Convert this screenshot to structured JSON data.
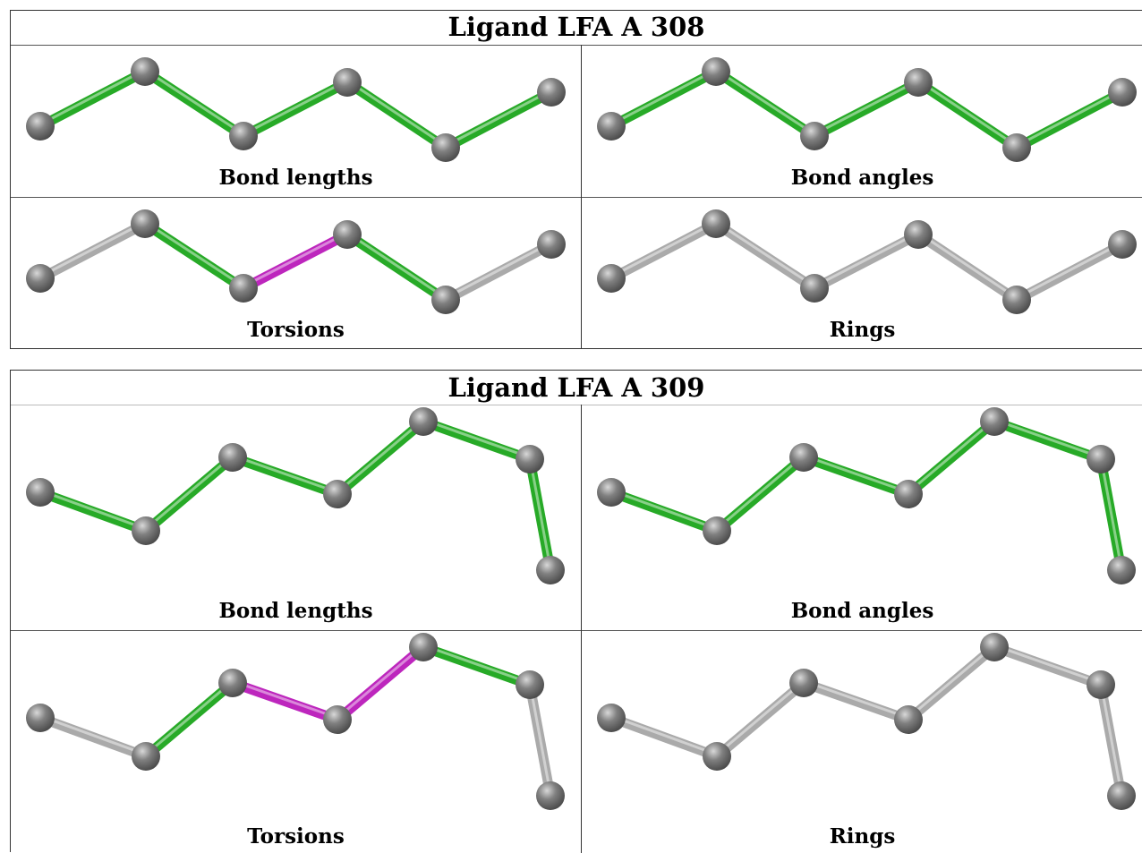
{
  "ligands": [
    {
      "title": "Ligand LFA A 308",
      "captions": [
        "Bond lengths",
        "Bond angles",
        "Torsions",
        "Rings"
      ]
    },
    {
      "title": "Ligand LFA A 309",
      "captions": [
        "Bond lengths",
        "Bond angles",
        "Torsions",
        "Rings"
      ]
    }
  ],
  "colors": {
    "ok_bond": "#2fcf2f",
    "outlier_bond": "#e62ee6",
    "neutral_bond": "#cfcfcf",
    "atom": "#808080"
  }
}
